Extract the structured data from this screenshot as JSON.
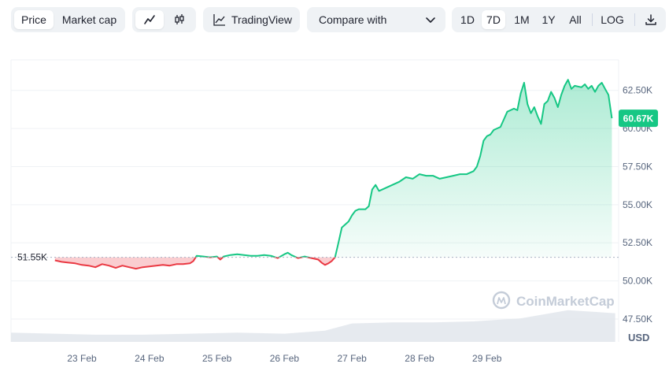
{
  "toolbar": {
    "tabs": [
      {
        "label": "Price",
        "active": true
      },
      {
        "label": "Market cap",
        "active": false
      }
    ],
    "chart_types": [
      {
        "icon": "line-chart-icon",
        "active": true
      },
      {
        "icon": "candlestick-icon",
        "active": false
      }
    ],
    "tradingview_label": "TradingView",
    "compare_label": "Compare with",
    "ranges": [
      {
        "label": "1D",
        "active": false
      },
      {
        "label": "7D",
        "active": true
      },
      {
        "label": "1M",
        "active": false
      },
      {
        "label": "1Y",
        "active": false
      },
      {
        "label": "All",
        "active": false
      }
    ],
    "log_label": "LOG",
    "download_icon": "download-icon"
  },
  "chart_data": {
    "type": "area",
    "x_ticks": [
      "23 Feb",
      "24 Feb",
      "25 Feb",
      "26 Feb",
      "27 Feb",
      "28 Feb",
      "29 Feb"
    ],
    "y_ticks": [
      47500,
      50000,
      52500,
      55000,
      57500,
      60000,
      62500
    ],
    "y_tick_labels": [
      "47.50K",
      "50.00K",
      "52.50K",
      "55.00K",
      "57.50K",
      "60.00K",
      "62.50K"
    ],
    "ylim": [
      46000,
      64500
    ],
    "currency": "USD",
    "baseline": {
      "value": 51550,
      "label": "51.55K"
    },
    "current": {
      "value": 60670,
      "label": "60.67K"
    },
    "colors": {
      "up": "#16c784",
      "down": "#ea3943",
      "up_fill": "#16c784",
      "down_fill": "#ea3943"
    },
    "grid": true,
    "watermark": "CoinMarketCap",
    "series": [
      {
        "values": [
          [
            22.6,
            51350
          ],
          [
            22.7,
            51250
          ],
          [
            22.8,
            51200
          ],
          [
            22.9,
            51150
          ],
          [
            23.0,
            51050
          ],
          [
            23.1,
            51000
          ],
          [
            23.2,
            50900
          ],
          [
            23.3,
            51100
          ],
          [
            23.4,
            51000
          ],
          [
            23.5,
            50850
          ],
          [
            23.6,
            51000
          ],
          [
            23.7,
            50900
          ],
          [
            23.8,
            50800
          ],
          [
            23.9,
            50900
          ],
          [
            24.0,
            50950
          ],
          [
            24.1,
            51000
          ],
          [
            24.2,
            51050
          ],
          [
            24.3,
            51000
          ],
          [
            24.4,
            51100
          ],
          [
            24.5,
            51100
          ],
          [
            24.6,
            51150
          ],
          [
            24.65,
            51300
          ],
          [
            24.7,
            51650
          ],
          [
            24.8,
            51600
          ],
          [
            24.9,
            51550
          ],
          [
            25.0,
            51600
          ],
          [
            25.05,
            51400
          ],
          [
            25.1,
            51600
          ],
          [
            25.2,
            51700
          ],
          [
            25.3,
            51750
          ],
          [
            25.4,
            51700
          ],
          [
            25.5,
            51650
          ],
          [
            25.6,
            51650
          ],
          [
            25.7,
            51700
          ],
          [
            25.8,
            51650
          ],
          [
            25.9,
            51500
          ],
          [
            26.0,
            51750
          ],
          [
            26.05,
            51850
          ],
          [
            26.1,
            51700
          ],
          [
            26.2,
            51500
          ],
          [
            26.3,
            51600
          ],
          [
            26.4,
            51500
          ],
          [
            26.5,
            51400
          ],
          [
            26.55,
            51200
          ],
          [
            26.6,
            51050
          ],
          [
            26.65,
            51150
          ],
          [
            26.7,
            51300
          ],
          [
            26.75,
            51550
          ],
          [
            26.8,
            52500
          ],
          [
            26.85,
            53500
          ],
          [
            26.9,
            53700
          ],
          [
            26.95,
            53900
          ],
          [
            27.0,
            54300
          ],
          [
            27.05,
            54600
          ],
          [
            27.1,
            54700
          ],
          [
            27.2,
            54700
          ],
          [
            27.25,
            54900
          ],
          [
            27.3,
            56000
          ],
          [
            27.35,
            56300
          ],
          [
            27.4,
            55900
          ],
          [
            27.5,
            56100
          ],
          [
            27.6,
            56300
          ],
          [
            27.7,
            56500
          ],
          [
            27.8,
            56800
          ],
          [
            27.9,
            56700
          ],
          [
            28.0,
            57000
          ],
          [
            28.1,
            56900
          ],
          [
            28.2,
            56900
          ],
          [
            28.3,
            56700
          ],
          [
            28.4,
            56800
          ],
          [
            28.5,
            56900
          ],
          [
            28.6,
            57000
          ],
          [
            28.7,
            57000
          ],
          [
            28.8,
            57200
          ],
          [
            28.85,
            57500
          ],
          [
            28.9,
            58200
          ],
          [
            28.95,
            59200
          ],
          [
            29.0,
            59500
          ],
          [
            29.05,
            59600
          ],
          [
            29.1,
            59900
          ],
          [
            29.2,
            60100
          ],
          [
            29.25,
            60600
          ],
          [
            29.3,
            61100
          ],
          [
            29.4,
            61300
          ],
          [
            29.45,
            61200
          ],
          [
            29.5,
            62300
          ],
          [
            29.55,
            63000
          ],
          [
            29.6,
            61600
          ],
          [
            29.65,
            61000
          ],
          [
            29.7,
            61400
          ],
          [
            29.75,
            60800
          ],
          [
            29.8,
            60300
          ],
          [
            29.85,
            61600
          ],
          [
            29.9,
            61800
          ],
          [
            29.95,
            62400
          ],
          [
            30.0,
            62000
          ],
          [
            30.05,
            61400
          ],
          [
            30.1,
            62200
          ],
          [
            30.15,
            62800
          ],
          [
            30.2,
            63200
          ],
          [
            30.25,
            62600
          ],
          [
            30.3,
            62800
          ],
          [
            30.4,
            62700
          ],
          [
            30.45,
            62900
          ],
          [
            30.5,
            62600
          ],
          [
            30.55,
            62800
          ],
          [
            30.6,
            62400
          ],
          [
            30.65,
            62800
          ],
          [
            30.7,
            63000
          ],
          [
            30.75,
            62600
          ],
          [
            30.8,
            62200
          ],
          [
            30.85,
            60670
          ]
        ]
      }
    ],
    "volume": [
      [
        21.95,
        0.45
      ],
      [
        22.6,
        0.4
      ],
      [
        23.2,
        0.35
      ],
      [
        23.9,
        0.35
      ],
      [
        24.6,
        0.4
      ],
      [
        25.3,
        0.45
      ],
      [
        26.0,
        0.4
      ],
      [
        26.6,
        0.55
      ],
      [
        27.0,
        0.9
      ],
      [
        27.6,
        0.95
      ],
      [
        28.2,
        0.95
      ],
      [
        28.8,
        1.0
      ],
      [
        29.5,
        1.15
      ],
      [
        30.2,
        1.55
      ],
      [
        30.9,
        1.4
      ]
    ]
  }
}
